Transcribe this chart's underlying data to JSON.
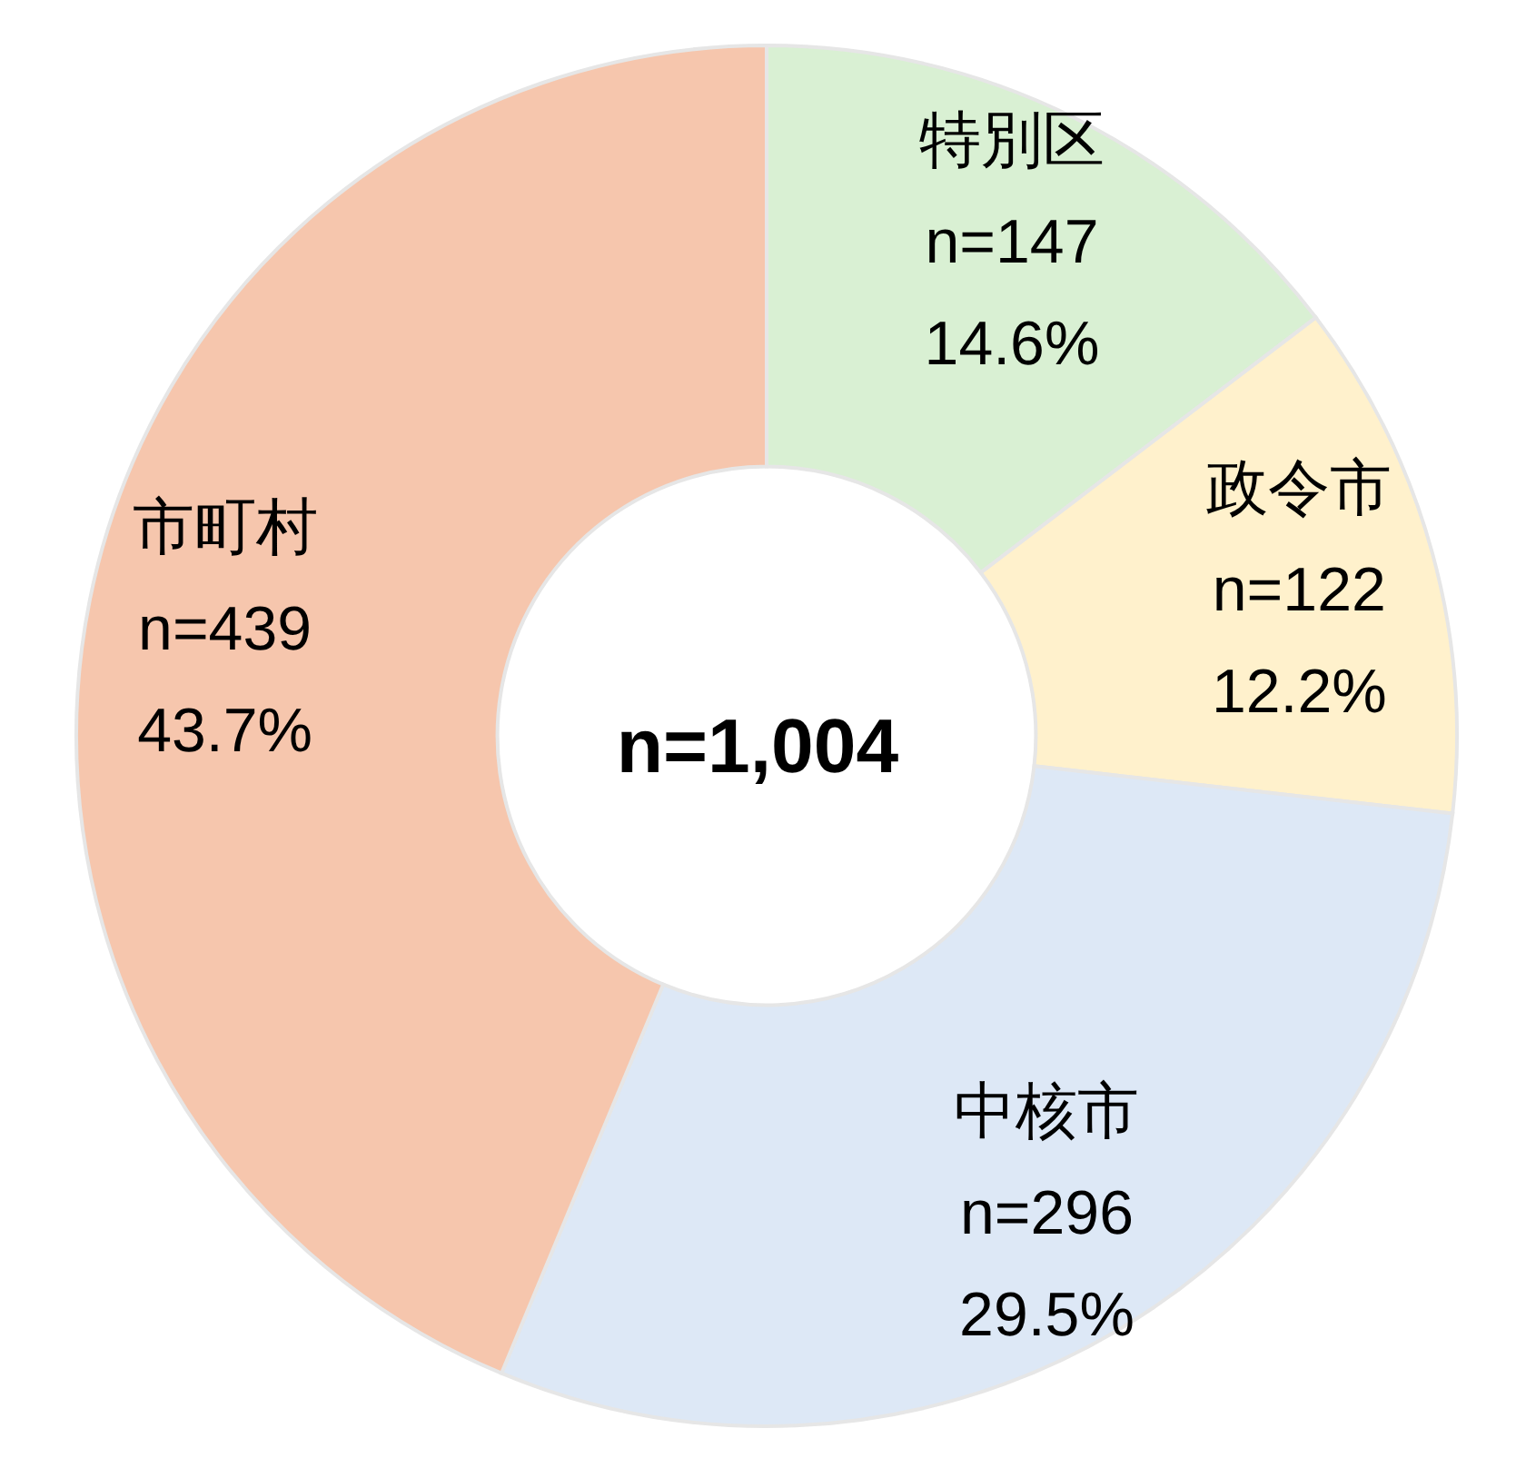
{
  "chart_data": {
    "type": "donut",
    "categories": [
      "特別区",
      "政令市",
      "中核市",
      "市町村"
    ],
    "values": [
      147,
      122,
      296,
      439
    ],
    "value_labels": [
      "n=147\n14.6%",
      "n=122\n12.2%",
      "n=296\n29.5%",
      "n=439\n43.7%"
    ],
    "colors": [
      "#d9f0d3",
      "#fff1cc",
      "#dde8f6",
      "#f6c6ad"
    ],
    "annotations": [
      "n=1,004"
    ]
  }
}
